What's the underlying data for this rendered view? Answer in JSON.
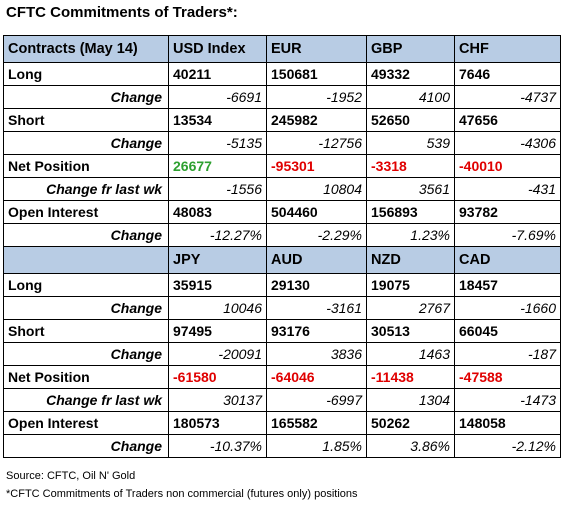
{
  "title": "CFTC Commitments of Traders*:",
  "blocks": [
    {
      "header": [
        "Contracts (May 14)",
        "USD Index",
        "EUR",
        "GBP",
        "CHF"
      ],
      "long": {
        "label": "Long",
        "values": [
          "40211",
          "150681",
          "49332",
          "7646"
        ]
      },
      "long_change": {
        "label": "Change",
        "values": [
          "-6691",
          "-1952",
          "4100",
          "-4737"
        ]
      },
      "short": {
        "label": "Short",
        "values": [
          "13534",
          "245982",
          "52650",
          "47656"
        ]
      },
      "short_change": {
        "label": "Change",
        "values": [
          "-5135",
          "-12756",
          "539",
          "-4306"
        ]
      },
      "net": {
        "label": "Net Position",
        "values": [
          "26677",
          "-95301",
          "-3318",
          "-40010"
        ]
      },
      "net_change": {
        "label": "Change fr last wk",
        "values": [
          "-1556",
          "10804",
          "3561",
          "-431"
        ]
      },
      "oi": {
        "label": "Open Interest",
        "values": [
          "48083",
          "504460",
          "156893",
          "93782"
        ]
      },
      "oi_change": {
        "label": "Change",
        "values": [
          "-12.27%",
          "-2.29%",
          "1.23%",
          "-7.69%"
        ]
      }
    },
    {
      "header": [
        "",
        "JPY",
        "AUD",
        "NZD",
        "CAD"
      ],
      "long": {
        "label": "Long",
        "values": [
          "35915",
          "29130",
          "19075",
          "18457"
        ]
      },
      "long_change": {
        "label": "Change",
        "values": [
          "10046",
          "-3161",
          "2767",
          "-1660"
        ]
      },
      "short": {
        "label": "Short",
        "values": [
          "97495",
          "93176",
          "30513",
          "66045"
        ]
      },
      "short_change": {
        "label": "Change",
        "values": [
          "-20091",
          "3836",
          "1463",
          "-187"
        ]
      },
      "net": {
        "label": "Net Position",
        "values": [
          "-61580",
          "-64046",
          "-11438",
          "-47588"
        ]
      },
      "net_change": {
        "label": "Change fr last wk",
        "values": [
          "30137",
          "-6997",
          "1304",
          "-1473"
        ]
      },
      "oi": {
        "label": "Open Interest",
        "values": [
          "180573",
          "165582",
          "50262",
          "148058"
        ]
      },
      "oi_change": {
        "label": "Change",
        "values": [
          "-10.37%",
          "1.85%",
          "3.86%",
          "-2.12%"
        ]
      }
    }
  ],
  "footer": {
    "source": "Source: CFTC, Oil N' Gold",
    "note": "*CFTC Commitments of Traders non commercial (futures only) positions"
  },
  "colors": {
    "header_bg": "#b8cce4",
    "positive": "#2ea030",
    "negative": "#e00000"
  }
}
